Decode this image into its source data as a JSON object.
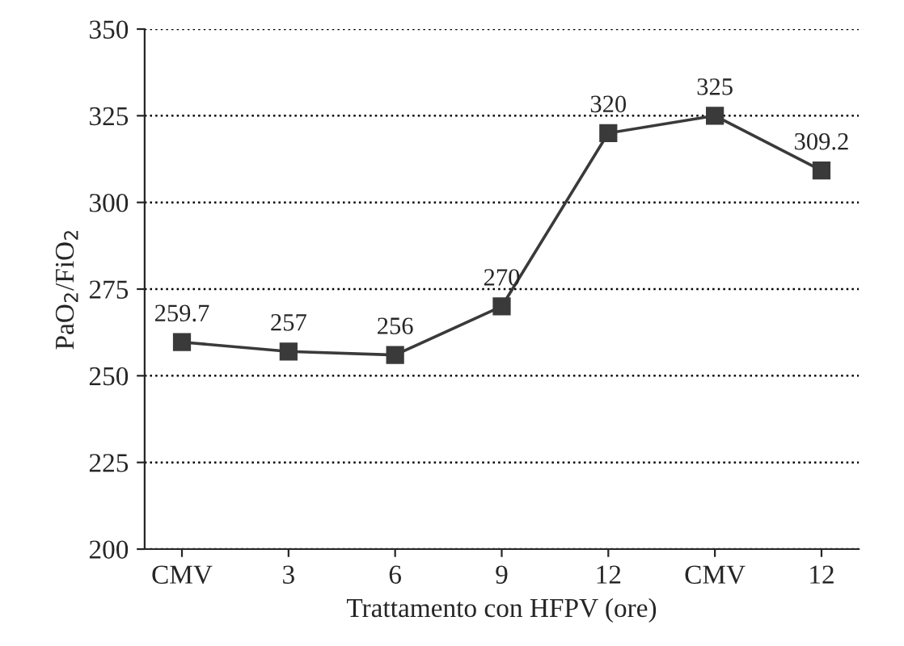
{
  "chart_data": {
    "type": "line",
    "xlabel": "Trattamento con HFPV (ore)",
    "ylabel": "PaO$_{2}$/FiO$_{2}$",
    "categories": [
      "CMV",
      "3",
      "6",
      "9",
      "12",
      "CMV",
      "12"
    ],
    "series": [
      {
        "color": "#3a3a3a",
        "values": [
          259.7,
          257,
          256,
          270,
          320,
          325,
          309.2
        ]
      }
    ],
    "ylim": [
      200,
      350
    ],
    "yticks": [
      200,
      225,
      250,
      275,
      300,
      325,
      350
    ],
    "grid": "y",
    "marker": "square",
    "line_style": "solid",
    "data_labels": true,
    "legend": false
  }
}
